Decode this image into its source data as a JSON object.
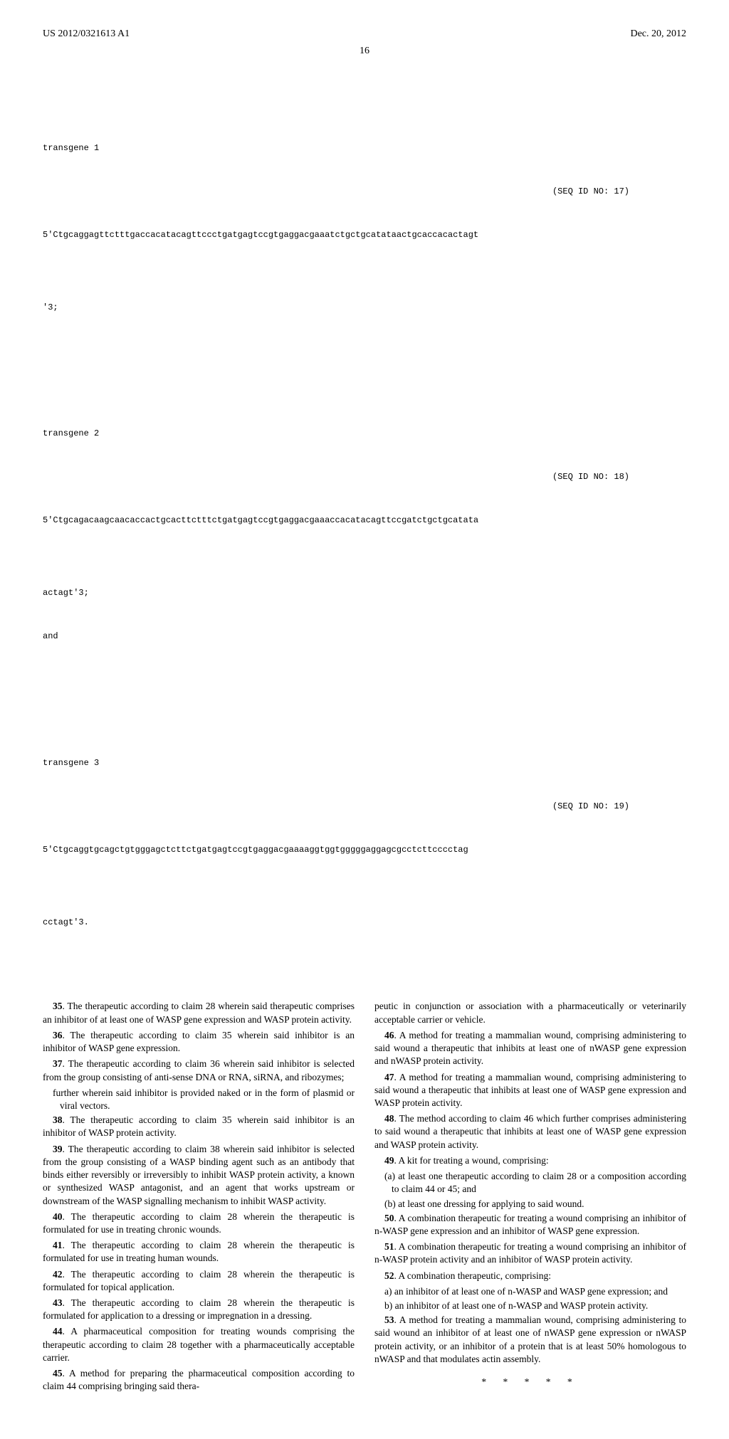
{
  "header": {
    "pub_no": "US 2012/0321613 A1",
    "date": "Dec. 20, 2012"
  },
  "page_number": "16",
  "sequences": {
    "t1_label": "transgene 1",
    "t1_seqid": "(SEQ ID NO: 17)",
    "t1_line": "5'Ctgcaggagttctttgaccacatacagttccctgatgagtccgtgaggacgaaatctgctgcatataactgcaccacactagt",
    "t1_end": "'3;",
    "t2_label": "transgene 2",
    "t2_seqid": "(SEQ ID NO: 18)",
    "t2_line": "5'Ctgcagacaagcaacaccactgcacttctttctgatgagtccgtgaggacgaaaccacatacagttccgatctgctgcatata",
    "t2_end": "actagt'3;",
    "t2_and": "and",
    "t3_label": "transgene 3",
    "t3_seqid": "(SEQ ID NO: 19)",
    "t3_line": "5'Ctgcaggtgcagctgtgggagctcttctgatgagtccgtgaggacgaaaaggtggtgggggaggagcgcctcttcccctag",
    "t3_end": "cctagt'3."
  },
  "left": {
    "c35": "35. The therapeutic according to claim 28 wherein said therapeutic comprises an inhibitor of at least one of WASP gene expression and WASP protein activity.",
    "c36": "36. The therapeutic according to claim 35 wherein said inhibitor is an inhibitor of WASP gene expression.",
    "c37": "37. The therapeutic according to claim 36 wherein said inhibitor is selected from the group consisting of anti-sense DNA or RNA, siRNA, and ribozymes;",
    "c37b": "further wherein said inhibitor is provided naked or in the form of plasmid or viral vectors.",
    "c38": "38. The therapeutic according to claim 35 wherein said inhibitor is an inhibitor of WASP protein activity.",
    "c39": "39. The therapeutic according to claim 38 wherein said inhibitor is selected from the group consisting of a WASP binding agent such as an antibody that binds either reversibly or irreversibly to inhibit WASP protein activity, a known or synthesized WASP antagonist, and an agent that works upstream or downstream of the WASP signalling mechanism to inhibit WASP activity.",
    "c40": "40. The therapeutic according to claim 28 wherein the therapeutic is formulated for use in treating chronic wounds.",
    "c41": "41. The therapeutic according to claim 28 wherein the therapeutic is formulated for use in treating human wounds.",
    "c42": "42. The therapeutic according to claim 28 wherein the therapeutic is formulated for topical application.",
    "c43": "43. The therapeutic according to claim 28 wherein the therapeutic is formulated for application to a dressing or impregnation in a dressing.",
    "c44": "44. A pharmaceutical composition for treating wounds comprising the therapeutic according to claim 28 together with a pharmaceutically acceptable carrier.",
    "c45": "45. A method for preparing the pharmaceutical composition according to claim 44 comprising bringing said thera-"
  },
  "right": {
    "c45b": "peutic in conjunction or association with a pharmaceutically or veterinarily acceptable carrier or vehicle.",
    "c46": "46. A method for treating a mammalian wound, comprising administering to said wound a therapeutic that inhibits at least one of nWASP gene expression and nWASP protein activity.",
    "c47": "47. A method for treating a mammalian wound, comprising administering to said wound a therapeutic that inhibits at least one of WASP gene expression and WASP protein activity.",
    "c48": "48. The method according to claim 46 which further comprises administering to said wound a therapeutic that inhibits at least one of WASP gene expression and WASP protein activity.",
    "c49": "49. A kit for treating a wound, comprising:",
    "c49a": "(a) at least one therapeutic according to claim 28 or a composition according to claim 44 or 45; and",
    "c49b": "(b) at least one dressing for applying to said wound.",
    "c50": "50. A combination therapeutic for treating a wound comprising an inhibitor of n-WASP gene expression and an inhibitor of WASP gene expression.",
    "c51": "51. A combination therapeutic for treating a wound comprising an inhibitor of n-WASP protein activity and an inhibitor of WASP protein activity.",
    "c52": "52. A combination therapeutic, comprising:",
    "c52a": "a) an inhibitor of at least one of n-WASP and WASP gene expression; and",
    "c52b": "b) an inhibitor of at least one of n-WASP and WASP protein activity.",
    "c53": "53. A method for treating a mammalian wound, comprising administering to said wound an inhibitor of at least one of nWASP gene expression or nWASP protein activity, or an inhibitor of a protein that is at least 50% homologous to nWASP and that modulates actin assembly.",
    "stars": "* * * * *"
  }
}
